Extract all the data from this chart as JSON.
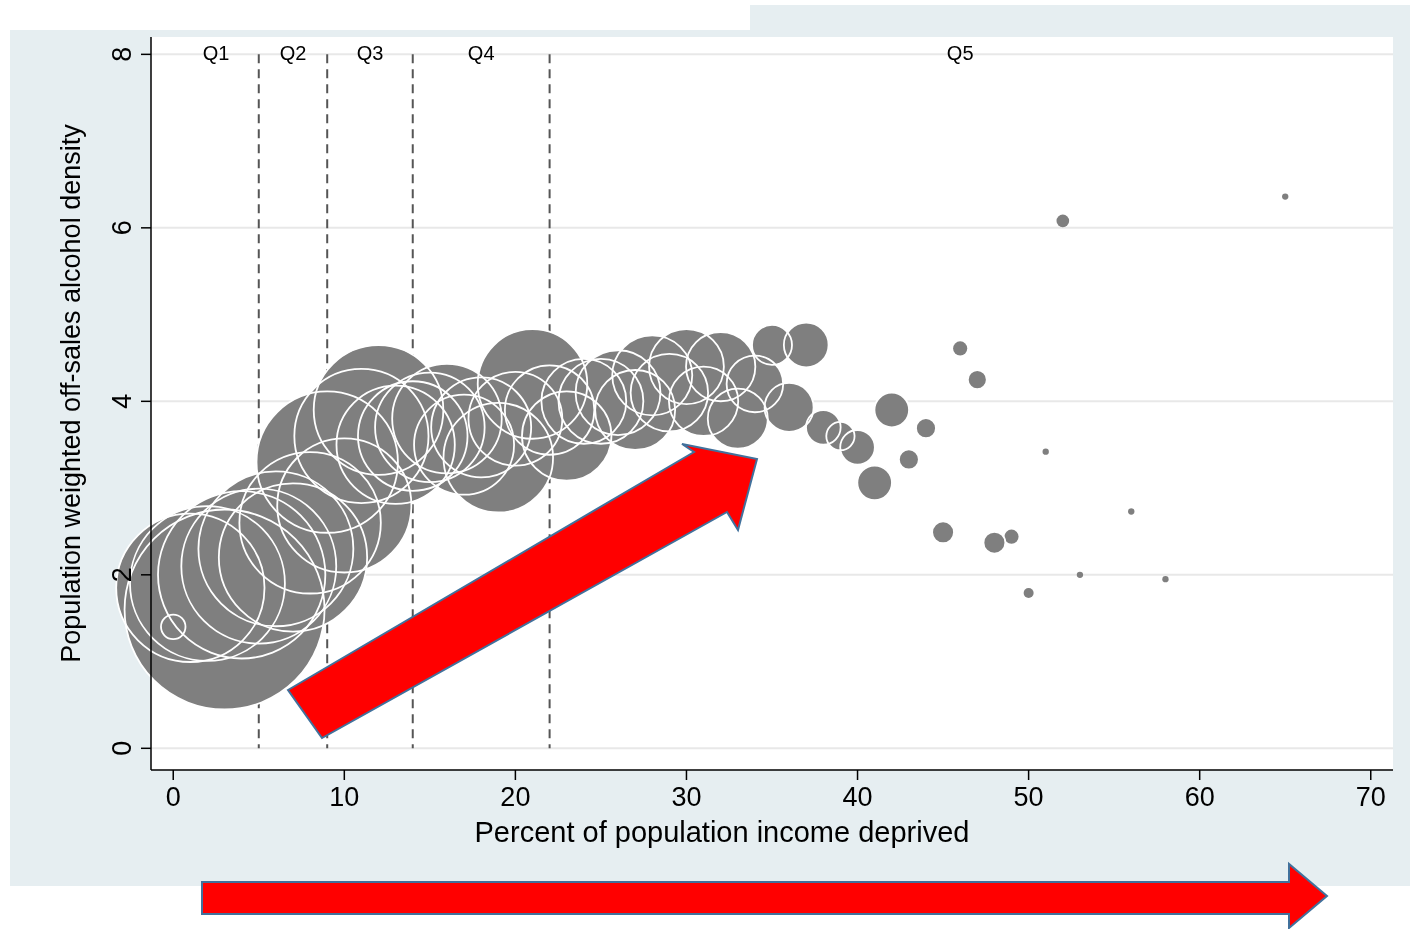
{
  "chart_data": {
    "type": "bubble",
    "xlabel": "Percent of population income deprived",
    "ylabel": "Population weighted off-sales alcohol density",
    "xlim": [
      -1.3,
      71.3
    ],
    "ylim": [
      -0.25,
      8.2
    ],
    "xticks": [
      0,
      10,
      20,
      30,
      40,
      50,
      60,
      70
    ],
    "yticks": [
      0,
      2,
      4,
      6,
      8
    ],
    "grid": "y",
    "series": [
      {
        "color": "#7f7f7f",
        "x": [
          0,
          1,
          2,
          3,
          4,
          5,
          6,
          7,
          8,
          9,
          10,
          11,
          12,
          13,
          14,
          15,
          16,
          17,
          18,
          19,
          20,
          21,
          22,
          23,
          24,
          25,
          26,
          27,
          28,
          29,
          30,
          31,
          32,
          33,
          34,
          35,
          36,
          37,
          38,
          39,
          40,
          41,
          42,
          43,
          44,
          45,
          46,
          47,
          48,
          49,
          50,
          51,
          52,
          53,
          56,
          58,
          65
        ],
        "values": [
          1.4,
          1.85,
          1.9,
          1.6,
          2.0,
          2.1,
          2.3,
          2.2,
          2.6,
          3.3,
          2.8,
          3.6,
          3.9,
          3.5,
          3.6,
          3.7,
          3.8,
          3.5,
          3.7,
          3.35,
          3.8,
          4.2,
          3.9,
          3.6,
          4.0,
          4.0,
          4.1,
          3.9,
          4.3,
          4.1,
          4.4,
          4.0,
          4.4,
          3.8,
          4.2,
          4.65,
          3.93,
          4.65,
          3.7,
          3.6,
          3.47,
          3.06,
          3.9,
          3.33,
          3.69,
          2.49,
          4.61,
          4.25,
          2.37,
          2.44,
          1.79,
          3.42,
          6.08,
          2.0,
          2.73,
          1.95,
          6.36
        ],
        "sizes": [
          0.015,
          0.55,
          0.6,
          1,
          0.7,
          0.6,
          0.6,
          0.55,
          0.5,
          0.5,
          0.45,
          0.45,
          0.42,
          0.35,
          0.3,
          0.3,
          0.3,
          0.25,
          0.25,
          0.3,
          0.22,
          0.3,
          0.2,
          0.2,
          0.18,
          0.18,
          0.18,
          0.16,
          0.16,
          0.15,
          0.14,
          0.12,
          0.12,
          0.09,
          0.08,
          0.04,
          0.06,
          0.05,
          0.03,
          0.02,
          0.03,
          0.03,
          0.03,
          0.01,
          0.01,
          0.012,
          0.005,
          0.009,
          0.012,
          0.005,
          0.0025,
          0.001,
          0.004,
          0.001,
          0.001,
          0.001,
          0.001
        ]
      }
    ],
    "ref_lines": [
      {
        "axis": "x",
        "value": 5,
        "line_style": "dashed",
        "color": "#555555"
      },
      {
        "axis": "x",
        "value": 9,
        "line_style": "dashed",
        "color": "#555555"
      },
      {
        "axis": "x",
        "value": 14,
        "line_style": "dashed",
        "color": "#555555"
      },
      {
        "axis": "x",
        "value": 22,
        "line_style": "dashed",
        "color": "#555555"
      }
    ],
    "annotations": [
      "Q1",
      "Q2",
      "Q3",
      "Q4",
      "Q5"
    ]
  }
}
